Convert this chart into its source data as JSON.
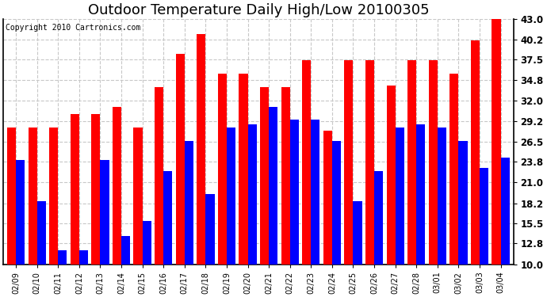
{
  "title": "Outdoor Temperature Daily High/Low 20100305",
  "copyright": "Copyright 2010 Cartronics.com",
  "dates": [
    "02/09",
    "02/10",
    "02/11",
    "02/12",
    "02/13",
    "02/14",
    "02/15",
    "02/16",
    "02/17",
    "02/18",
    "02/19",
    "02/20",
    "02/21",
    "02/22",
    "02/23",
    "02/24",
    "02/25",
    "02/26",
    "02/27",
    "02/28",
    "03/01",
    "03/02",
    "03/03",
    "03/04"
  ],
  "highs": [
    28.4,
    28.4,
    28.4,
    30.2,
    30.2,
    31.1,
    28.4,
    33.8,
    38.3,
    41.0,
    35.6,
    35.6,
    33.8,
    33.8,
    37.4,
    28.0,
    37.4,
    37.4,
    34.0,
    37.4,
    37.4,
    35.6,
    40.1,
    43.0
  ],
  "lows": [
    24.0,
    18.5,
    11.9,
    11.9,
    24.0,
    13.8,
    15.8,
    22.5,
    26.6,
    19.4,
    28.4,
    28.8,
    31.1,
    29.5,
    29.5,
    26.6,
    18.5,
    22.5,
    28.4,
    28.8,
    28.4,
    26.6,
    23.0,
    24.3
  ],
  "ymin": 10.0,
  "high_color": "#ff0000",
  "low_color": "#0000ff",
  "background_color": "#ffffff",
  "grid_color": "#c8c8c8",
  "ylim": [
    10.0,
    43.0
  ],
  "yticks": [
    10.0,
    12.8,
    15.5,
    18.2,
    21.0,
    23.8,
    26.5,
    29.2,
    32.0,
    34.8,
    37.5,
    40.2,
    43.0
  ],
  "title_fontsize": 13,
  "copyright_fontsize": 7,
  "bar_width": 0.42
}
